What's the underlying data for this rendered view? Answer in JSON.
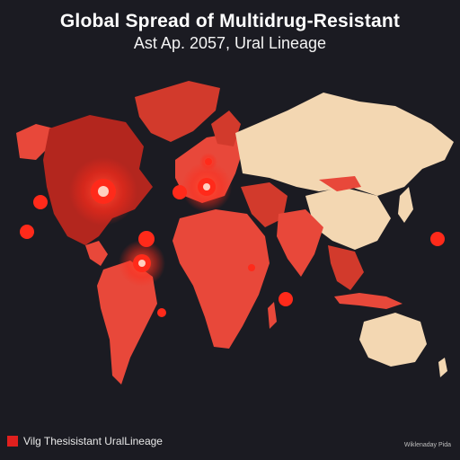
{
  "title": "Global Spread of Multidrug-Resistant",
  "subtitle": "Ast Ap. 2057, Ural Lineage",
  "legend": {
    "label": "Vilg Thesisistant UralLineage",
    "color": "#e0201e"
  },
  "credit": "Wiklenaday Pida",
  "colors": {
    "background": "#1b1b22",
    "infected": "#e8483a",
    "infected_dark": "#b3261e",
    "unaffected": "#f3d7b2",
    "hotspot": "#ff2a1a"
  },
  "icons": [
    "virus-hotspot-icon"
  ]
}
